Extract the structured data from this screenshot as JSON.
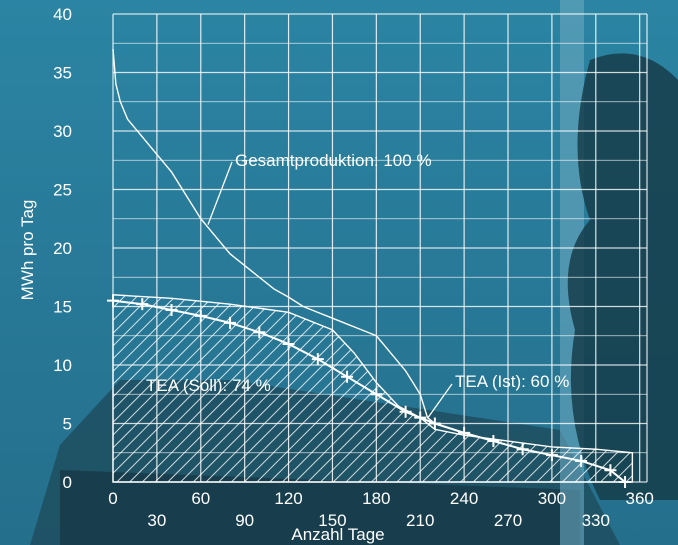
{
  "chart_data": {
    "type": "line",
    "xlabel": "Anzahl Tage",
    "ylabel": "MWh pro Tag",
    "xlim": [
      0,
      365
    ],
    "ylim": [
      0,
      40
    ],
    "grid": true,
    "x_ticks": [
      0,
      30,
      60,
      90,
      120,
      150,
      180,
      210,
      240,
      270,
      300,
      330,
      360
    ],
    "y_ticks": [
      0,
      5,
      10,
      15,
      20,
      25,
      30,
      35,
      40
    ],
    "series": [
      {
        "name": "Gesamtproduktion: 100 %",
        "x": [
          0,
          2,
          5,
          10,
          20,
          30,
          40,
          50,
          60,
          70,
          80,
          90,
          100,
          110,
          120,
          130,
          140,
          150,
          160,
          170,
          180,
          190,
          200,
          210,
          215,
          220
        ],
        "y": [
          37,
          34,
          32.5,
          31,
          29.5,
          28,
          26.5,
          24.5,
          22.5,
          21,
          19.5,
          18.5,
          17.5,
          16.5,
          15.8,
          15,
          14.5,
          14,
          13.5,
          13,
          12.5,
          11,
          9.5,
          7.5,
          5.5,
          5
        ]
      },
      {
        "name": "TEA (Ist): 60 %",
        "x": [
          0,
          20,
          40,
          60,
          80,
          100,
          120,
          140,
          160,
          180,
          200,
          210,
          220,
          240,
          260,
          280,
          300,
          320,
          340,
          350
        ],
        "y": [
          15.5,
          15.2,
          14.7,
          14.2,
          13.6,
          12.8,
          11.8,
          10.5,
          9,
          7.5,
          6,
          5.5,
          5,
          4.2,
          3.5,
          2.8,
          2.3,
          1.8,
          1,
          0
        ]
      }
    ],
    "areas": [
      {
        "name": "TEA (Soll): 74 %",
        "x": [
          0,
          40,
          80,
          120,
          150,
          165,
          180,
          195,
          210,
          220,
          240,
          270,
          300,
          330,
          355
        ],
        "y": [
          16,
          15.7,
          15.2,
          14.5,
          13,
          11,
          8.5,
          6.5,
          5.5,
          4.5,
          4,
          3.5,
          3,
          2.8,
          2.5
        ]
      }
    ]
  }
}
